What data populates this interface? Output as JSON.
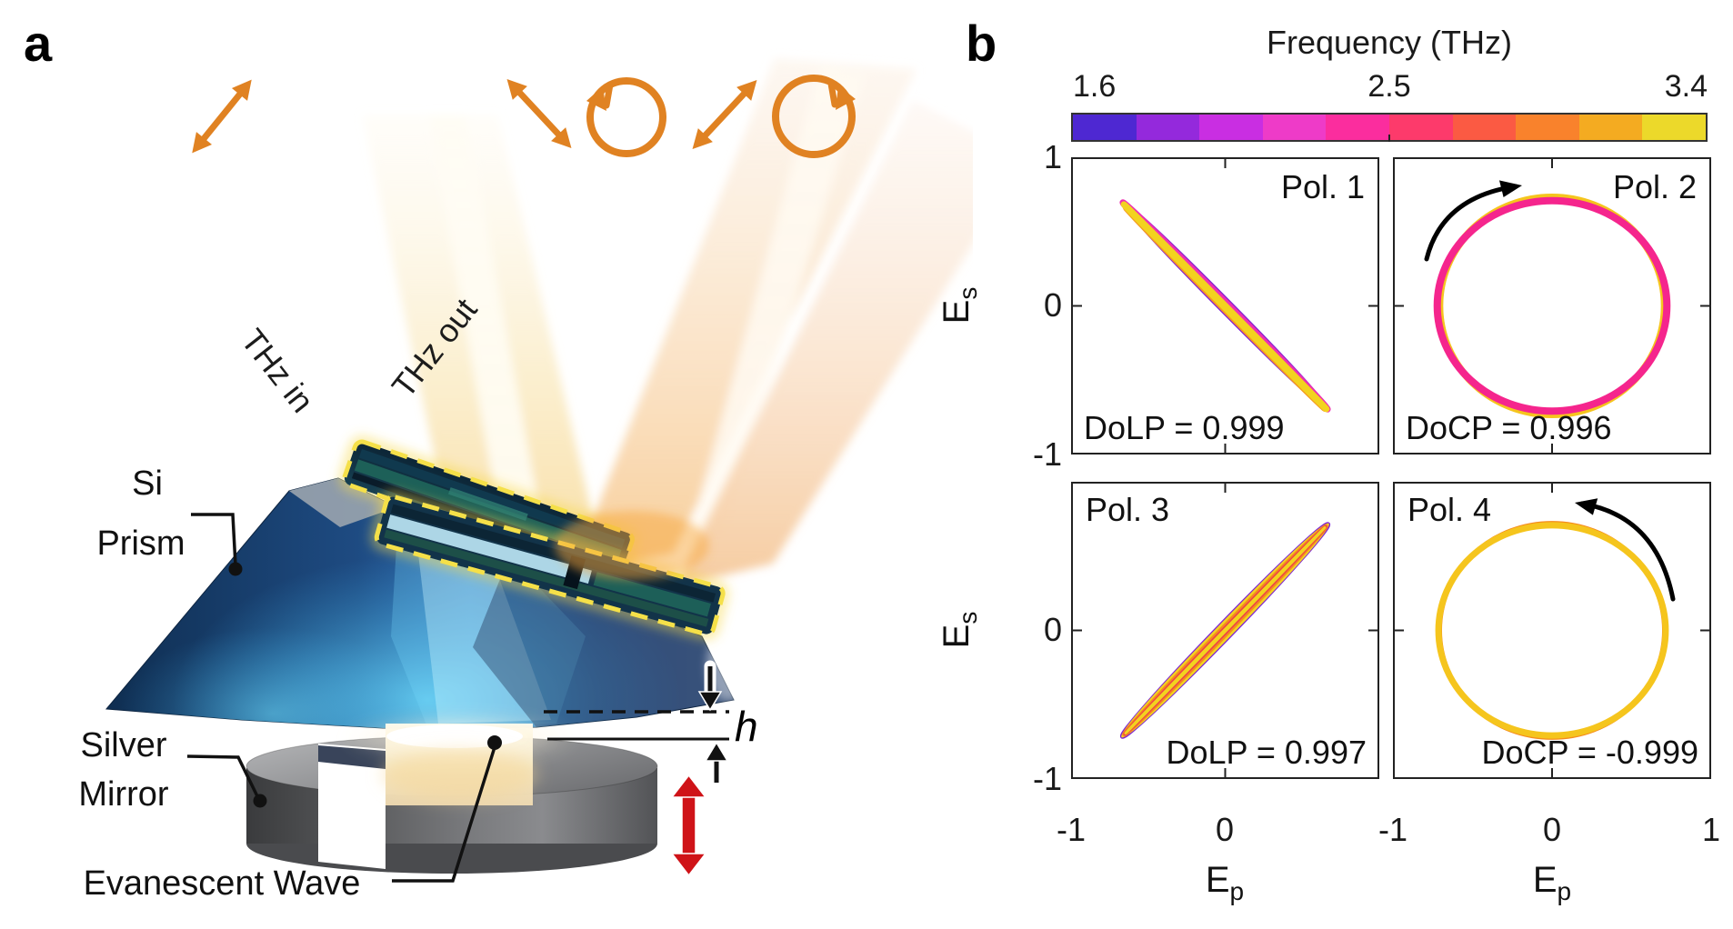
{
  "figure": {
    "panel_a_label": "a",
    "panel_b_label": "b"
  },
  "panel_a": {
    "labels": {
      "si_1": "Si",
      "si_2": "Prism",
      "mirror_1": "Silver",
      "mirror_2": "Mirror",
      "evanescent": "Evanescent Wave",
      "thz_in": "THz in",
      "thz_out": "THz out",
      "gap": "h"
    },
    "colors": {
      "symbol_orange": "#e08222",
      "red_arrow": "#cf1318",
      "prism_dark": "#0f2e51",
      "prism_mid": "#2f6cb0",
      "prism_glow": "#6fe0ff",
      "device_outline": "#f5e049",
      "mirror_gray": "#737477",
      "beam_cream": "#f7dc9e"
    }
  },
  "panel_b": {
    "colorbar": {
      "title": "Frequency (THz)",
      "tick_labels": [
        "1.6",
        "2.5",
        "3.4"
      ],
      "colors": [
        "#4e28d2",
        "#9429dc",
        "#c92ee2",
        "#ee3bc8",
        "#fb2d9e",
        "#fd3a6b",
        "#fb5a43",
        "#f9822c",
        "#f4ab21",
        "#ecd92a"
      ]
    },
    "y_axis": {
      "label_base": "E",
      "label_sub": "s",
      "ticks": [
        "1",
        "0",
        "-1",
        "0",
        "-1"
      ]
    },
    "x_axis": {
      "label_base": "E",
      "label_sub": "p",
      "ticks": [
        "-1",
        "0",
        "-1",
        "0",
        "1"
      ]
    },
    "plots": [
      {
        "corner_label": "Pol. 1",
        "metric": "DoLP = 0.999"
      },
      {
        "corner_label": "Pol. 2",
        "metric": "DoCP = 0.996"
      },
      {
        "corner_label": "Pol. 3",
        "metric": "DoLP = 0.997"
      },
      {
        "corner_label": "Pol. 4",
        "metric": "DoCP = -0.999"
      }
    ]
  },
  "chart_data": {
    "type": "line",
    "title": "Polarization ellipses of four output states vs frequency",
    "colorbar": {
      "title": "Frequency (THz)",
      "min": 1.6,
      "center": 2.5,
      "max": 3.4,
      "colors": [
        "#4e28d2",
        "#9429dc",
        "#c92ee2",
        "#ee3bc8",
        "#fb2d9e",
        "#fd3a6b",
        "#fb5a43",
        "#f9822c",
        "#f4ab21",
        "#ecd92a"
      ]
    },
    "axes": {
      "xlabel": "Ep",
      "ylabel": "Es",
      "xlim": [
        -1,
        1
      ],
      "ylim": [
        -1,
        1
      ],
      "xticks": [
        -1,
        0,
        1
      ],
      "yticks": [
        -1,
        0,
        1
      ]
    },
    "plots": [
      {
        "name": "Pol. 1",
        "kind": "linear",
        "metric_label": "DoLP",
        "metric_value": 0.999,
        "endpoints": [
          [
            -0.67,
            0.7
          ],
          [
            0.66,
            -0.68
          ]
        ],
        "azimuth_deg": -45,
        "traces": [
          {
            "color": "#7e20d4",
            "a": 0.95,
            "b": 0.034,
            "w": 5,
            "angle": 45.3
          },
          {
            "color": "#ee2fb2",
            "a": 0.955,
            "b": 0.02,
            "w": 7,
            "angle": 45.3
          },
          {
            "color": "#f59c1e",
            "a": 0.93,
            "b": 0.011,
            "w": 6,
            "angle": 45.3,
            "dx": 0.012,
            "dy": 0.012
          },
          {
            "color": "#f2d31f",
            "a": 0.945,
            "b": 0.004,
            "w": 7,
            "angle": 45.3,
            "dx": 0.004,
            "dy": 0.004
          }
        ]
      },
      {
        "name": "Pol. 2",
        "kind": "circular",
        "metric_label": "DoCP",
        "metric_value": 0.996,
        "radius": 0.72,
        "rotation_arrow": "upper-left",
        "traces": [
          {
            "color": "#5b2fd6",
            "a": 0.735,
            "b": 0.72,
            "w": 3,
            "angle": 0
          },
          {
            "color": "#e93ccb",
            "a": 0.705,
            "b": 0.727,
            "w": 4,
            "angle": 0
          },
          {
            "color": "#f5c51d",
            "a": 0.715,
            "b": 0.74,
            "w": 8,
            "angle": 0
          },
          {
            "color": "#f5258d",
            "a": 0.73,
            "b": 0.717,
            "w": 8,
            "angle": 0
          }
        ]
      },
      {
        "name": "Pol. 3",
        "kind": "linear",
        "metric_label": "DoLP",
        "metric_value": 0.997,
        "endpoints": [
          [
            -0.68,
            -0.73
          ],
          [
            0.66,
            0.7
          ]
        ],
        "azimuth_deg": 45,
        "traces": [
          {
            "color": "#7e20d4",
            "a": 0.97,
            "b": 0.046,
            "w": 5,
            "angle": -45.9
          },
          {
            "color": "#f2d31f",
            "a": 0.96,
            "b": 0.035,
            "w": 6,
            "angle": -45.9
          },
          {
            "color": "#f58b1e",
            "a": 0.95,
            "b": 0.022,
            "w": 5,
            "angle": -45.9
          },
          {
            "color": "#ee4247",
            "a": 0.945,
            "b": 0.012,
            "w": 4,
            "angle": -45.9
          },
          {
            "color": "#f2d31f",
            "a": 0.94,
            "b": 0.002,
            "w": 3,
            "angle": -45.9
          }
        ]
      },
      {
        "name": "Pol. 4",
        "kind": "circular",
        "metric_label": "DoCP",
        "metric_value": -0.999,
        "radius": 0.72,
        "rotation_arrow": "upper-right",
        "traces": [
          {
            "color": "#5b2fd6",
            "a": 0.72,
            "b": 0.725,
            "w": 2.5,
            "angle": 0
          },
          {
            "color": "#f5258d",
            "a": 0.727,
            "b": 0.72,
            "w": 3.5,
            "angle": 0
          },
          {
            "color": "#f58b1e",
            "a": 0.714,
            "b": 0.73,
            "w": 5,
            "angle": 0
          },
          {
            "color": "#f5c51d",
            "a": 0.722,
            "b": 0.716,
            "w": 7,
            "angle": 0
          }
        ]
      }
    ]
  }
}
